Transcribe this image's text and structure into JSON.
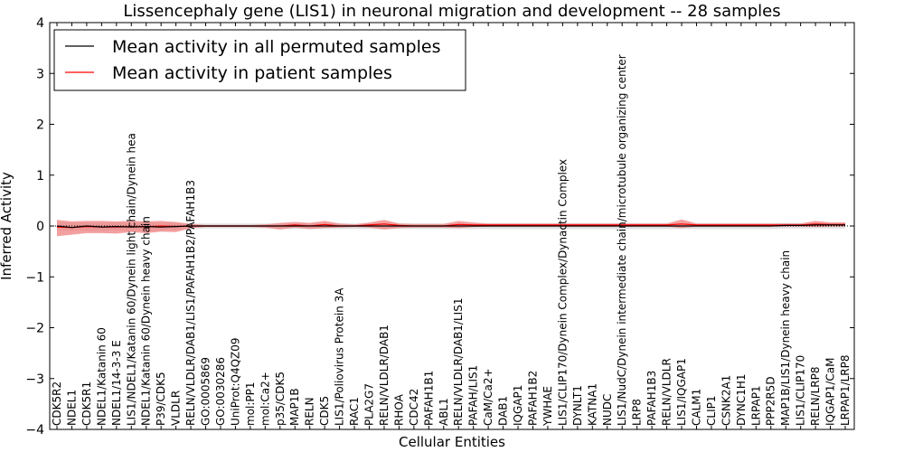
{
  "chart_data": {
    "type": "line",
    "title": "Lissencephaly gene (LIS1) in neuronal migration and development -- 28 samples",
    "xlabel": "Cellular Entities",
    "ylabel": "Inferred Activity",
    "ylim": [
      -4,
      4
    ],
    "yticks": [
      "−4",
      "−3",
      "−2",
      "−1",
      "0",
      "1",
      "2",
      "3",
      "4"
    ],
    "ytick_values": [
      -4,
      -3,
      -2,
      -1,
      0,
      1,
      2,
      3,
      4
    ],
    "grid": false,
    "legend_position": "top-left",
    "categories": [
      "CDK5R2",
      "NDEL1",
      "CDK5R1",
      "NDEL1/Katanin 60",
      "NDEL1/14-3-3 E",
      "LIS1/NDEL1/Katanin 60/Dynein light chain/Dynein hea",
      "NDEL1/Katanin 60/Dynein heavy chain",
      "P39/CDK5",
      "VLDLR",
      "RELN/VLDLR/DAB1/LIS1/PAFAH1B2/PAFAH1B3",
      "GO:0005869",
      "GO:0030286",
      "UniProt:Q4QZ09",
      "mol:PP1",
      "mol:Ca2+",
      "p35/CDK5",
      "MAP1B",
      "RELN",
      "CDK5",
      "LIS1/Poliovirus Protein 3A",
      "RAC1",
      "PLA2G7",
      "RELN/VLDLR/DAB1",
      "RHOA",
      "CDC42",
      "PAFAH1B1",
      "ABL1",
      "RELN/VLDLR/DAB1/LIS1",
      "PAFAH/LIS1",
      "CaM/Ca2+",
      "DAB1",
      "IQGAP1",
      "PAFAH1B2",
      "YWHAE",
      "LIS1/CLIP170/Dynein Complex/Dynactin Complex",
      "DYNLT1",
      "KATNA1",
      "NUDC",
      "LIS1/NudC/Dynein intermediate chain/microtubule organizing center",
      "LRP8",
      "PAFAH1B3",
      "RELN/VLDLR",
      "LIS1/IQGAP1",
      "CALM1",
      "CLIP1",
      "CSNK2A1",
      "DYNC1H1",
      "LRPAP1",
      "PPP2R5D",
      "MAP1B/LIS1/Dynein heavy chain",
      "LIS1/CLIP170",
      "RELN/LRP8",
      "IQGAP1/CaM",
      "LRPAP1/LRP8"
    ],
    "series": [
      {
        "name": "Mean activity in all permuted samples",
        "color": "#000000",
        "values": [
          0.0,
          -0.03,
          0.0,
          -0.02,
          -0.01,
          -0.02,
          -0.01,
          -0.02,
          -0.01,
          0.0,
          0.0,
          0.0,
          0.0,
          0.0,
          0.0,
          0.0,
          0.0,
          0.0,
          0.0,
          0.0,
          0.0,
          0.0,
          0.0,
          0.0,
          0.0,
          0.0,
          0.0,
          0.0,
          0.0,
          0.0,
          0.0,
          0.0,
          0.0,
          0.0,
          0.0,
          0.0,
          0.0,
          0.0,
          0.0,
          0.0,
          0.0,
          0.0,
          0.0,
          0.0,
          0.0,
          0.0,
          0.0,
          0.0,
          0.0,
          0.01,
          0.01,
          0.02,
          0.02,
          0.02
        ],
        "band_low": [
          -0.08,
          -0.1,
          -0.09,
          -0.1,
          -0.09,
          -0.1,
          -0.09,
          -0.09,
          -0.08,
          -0.06,
          -0.05,
          -0.05,
          -0.05,
          -0.05,
          -0.05,
          -0.06,
          -0.06,
          -0.06,
          -0.06,
          -0.06,
          -0.06,
          -0.06,
          -0.06,
          -0.06,
          -0.06,
          -0.06,
          -0.06,
          -0.06,
          -0.06,
          -0.06,
          -0.06,
          -0.06,
          -0.06,
          -0.06,
          -0.06,
          -0.06,
          -0.06,
          -0.06,
          -0.06,
          -0.06,
          -0.06,
          -0.06,
          -0.06,
          -0.06,
          -0.06,
          -0.06,
          -0.06,
          -0.06,
          -0.06,
          -0.05,
          -0.05,
          -0.05,
          -0.05,
          -0.05
        ],
        "band_high": [
          0.08,
          0.06,
          0.07,
          0.06,
          0.07,
          0.06,
          0.07,
          0.06,
          0.06,
          0.05,
          0.05,
          0.05,
          0.05,
          0.05,
          0.05,
          0.05,
          0.05,
          0.05,
          0.05,
          0.05,
          0.05,
          0.05,
          0.05,
          0.05,
          0.05,
          0.05,
          0.05,
          0.05,
          0.05,
          0.05,
          0.05,
          0.05,
          0.05,
          0.05,
          0.05,
          0.05,
          0.05,
          0.05,
          0.05,
          0.05,
          0.05,
          0.05,
          0.05,
          0.05,
          0.05,
          0.05,
          0.05,
          0.05,
          0.05,
          0.06,
          0.06,
          0.07,
          0.07,
          0.07
        ],
        "band_color": "#cccccc"
      },
      {
        "name": "Mean activity in patient samples",
        "color": "#ff0000",
        "values": [
          -0.02,
          -0.03,
          -0.01,
          -0.02,
          -0.02,
          -0.01,
          -0.02,
          0.0,
          -0.01,
          0.0,
          0.0,
          0.0,
          0.0,
          0.0,
          0.0,
          0.0,
          0.02,
          0.0,
          0.03,
          0.0,
          0.0,
          0.02,
          0.04,
          0.01,
          0.0,
          0.0,
          0.0,
          0.03,
          0.02,
          0.02,
          0.02,
          0.02,
          0.02,
          0.02,
          0.02,
          0.02,
          0.02,
          0.02,
          0.02,
          0.02,
          0.02,
          0.02,
          0.04,
          0.02,
          0.02,
          0.02,
          0.02,
          0.02,
          0.02,
          0.02,
          0.02,
          0.04,
          0.03,
          0.03
        ],
        "band_low": [
          -0.2,
          -0.17,
          -0.14,
          -0.14,
          -0.15,
          -0.12,
          -0.14,
          -0.11,
          -0.12,
          -0.04,
          -0.02,
          -0.02,
          -0.02,
          -0.02,
          -0.03,
          -0.07,
          -0.03,
          -0.06,
          -0.04,
          -0.03,
          -0.02,
          -0.03,
          -0.07,
          -0.04,
          -0.03,
          -0.03,
          -0.03,
          -0.04,
          -0.02,
          -0.01,
          -0.01,
          -0.01,
          -0.01,
          -0.01,
          -0.01,
          -0.01,
          -0.01,
          -0.01,
          -0.01,
          -0.01,
          -0.01,
          -0.01,
          -0.04,
          -0.01,
          -0.01,
          -0.01,
          -0.01,
          -0.01,
          -0.01,
          -0.01,
          -0.01,
          -0.02,
          -0.01,
          -0.01
        ],
        "band_high": [
          0.12,
          0.09,
          0.1,
          0.1,
          0.09,
          0.1,
          0.09,
          0.1,
          0.08,
          0.04,
          0.02,
          0.02,
          0.02,
          0.02,
          0.03,
          0.06,
          0.08,
          0.06,
          0.1,
          0.05,
          0.03,
          0.07,
          0.12,
          0.05,
          0.04,
          0.04,
          0.04,
          0.1,
          0.07,
          0.05,
          0.05,
          0.05,
          0.05,
          0.05,
          0.05,
          0.05,
          0.05,
          0.05,
          0.05,
          0.05,
          0.05,
          0.05,
          0.13,
          0.05,
          0.05,
          0.05,
          0.05,
          0.05,
          0.05,
          0.05,
          0.05,
          0.1,
          0.07,
          0.07
        ],
        "band_color": "#f08080"
      }
    ]
  }
}
